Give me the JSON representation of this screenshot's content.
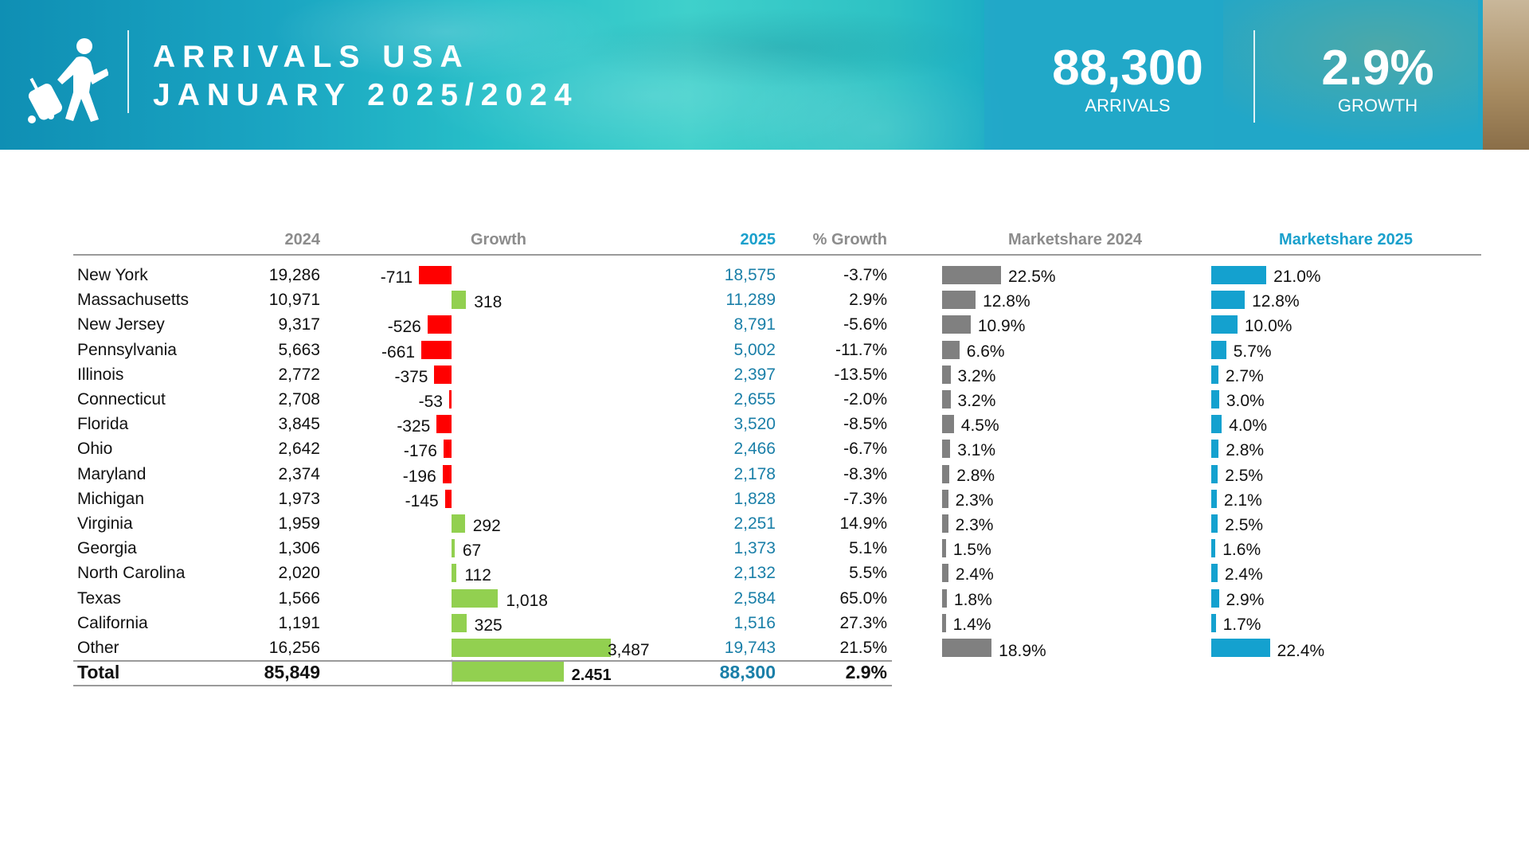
{
  "header": {
    "title_line1": "ARRIVALS USA",
    "title_line2": "JANUARY 2025/2024",
    "kpi_arrivals_value": "88,300",
    "kpi_arrivals_label": "ARRIVALS",
    "kpi_growth_value": "2.9%",
    "kpi_growth_label": "GROWTH",
    "icon": "traveler-with-suitcase-icon"
  },
  "colors": {
    "negative": "#ff0000",
    "positive": "#92d050",
    "share2024": "#808080",
    "share2025": "#14a1cf",
    "accent": "#1aa0cc"
  },
  "table": {
    "columns": {
      "y2024": "2024",
      "growth": "Growth",
      "y2025": "2025",
      "pct": "% Growth",
      "ms2024": "Marketshare 2024",
      "ms2025": "Marketshare 2025"
    },
    "rows": [
      {
        "state": "New York",
        "v2024": "19,286",
        "growth": -711,
        "growth_label": "-711",
        "v2025": "18,575",
        "pct": "-3.7%",
        "ms2024": 22.5,
        "ms2024_label": "22.5%",
        "ms2025": 21.0,
        "ms2025_label": "21.0%"
      },
      {
        "state": "Massachusetts",
        "v2024": "10,971",
        "growth": 318,
        "growth_label": "318",
        "v2025": "11,289",
        "pct": "2.9%",
        "ms2024": 12.8,
        "ms2024_label": "12.8%",
        "ms2025": 12.8,
        "ms2025_label": "12.8%"
      },
      {
        "state": "New Jersey",
        "v2024": "9,317",
        "growth": -526,
        "growth_label": "-526",
        "v2025": "8,791",
        "pct": "-5.6%",
        "ms2024": 10.9,
        "ms2024_label": "10.9%",
        "ms2025": 10.0,
        "ms2025_label": "10.0%"
      },
      {
        "state": "Pennsylvania",
        "v2024": "5,663",
        "growth": -661,
        "growth_label": "-661",
        "v2025": "5,002",
        "pct": "-11.7%",
        "ms2024": 6.6,
        "ms2024_label": "6.6%",
        "ms2025": 5.7,
        "ms2025_label": "5.7%"
      },
      {
        "state": "Illinois",
        "v2024": "2,772",
        "growth": -375,
        "growth_label": "-375",
        "v2025": "2,397",
        "pct": "-13.5%",
        "ms2024": 3.2,
        "ms2024_label": "3.2%",
        "ms2025": 2.7,
        "ms2025_label": "2.7%"
      },
      {
        "state": "Connecticut",
        "v2024": "2,708",
        "growth": -53,
        "growth_label": "-53",
        "v2025": "2,655",
        "pct": "-2.0%",
        "ms2024": 3.2,
        "ms2024_label": "3.2%",
        "ms2025": 3.0,
        "ms2025_label": "3.0%"
      },
      {
        "state": "Florida",
        "v2024": "3,845",
        "growth": -325,
        "growth_label": "-325",
        "v2025": "3,520",
        "pct": "-8.5%",
        "ms2024": 4.5,
        "ms2024_label": "4.5%",
        "ms2025": 4.0,
        "ms2025_label": "4.0%"
      },
      {
        "state": "Ohio",
        "v2024": "2,642",
        "growth": -176,
        "growth_label": "-176",
        "v2025": "2,466",
        "pct": "-6.7%",
        "ms2024": 3.1,
        "ms2024_label": "3.1%",
        "ms2025": 2.8,
        "ms2025_label": "2.8%"
      },
      {
        "state": "Maryland",
        "v2024": "2,374",
        "growth": -196,
        "growth_label": "-196",
        "v2025": "2,178",
        "pct": "-8.3%",
        "ms2024": 2.8,
        "ms2024_label": "2.8%",
        "ms2025": 2.5,
        "ms2025_label": "2.5%"
      },
      {
        "state": "Michigan",
        "v2024": "1,973",
        "growth": -145,
        "growth_label": "-145",
        "v2025": "1,828",
        "pct": "-7.3%",
        "ms2024": 2.3,
        "ms2024_label": "2.3%",
        "ms2025": 2.1,
        "ms2025_label": "2.1%"
      },
      {
        "state": "Virginia",
        "v2024": "1,959",
        "growth": 292,
        "growth_label": "292",
        "v2025": "2,251",
        "pct": "14.9%",
        "ms2024": 2.3,
        "ms2024_label": "2.3%",
        "ms2025": 2.5,
        "ms2025_label": "2.5%"
      },
      {
        "state": "Georgia",
        "v2024": "1,306",
        "growth": 67,
        "growth_label": "67",
        "v2025": "1,373",
        "pct": "5.1%",
        "ms2024": 1.5,
        "ms2024_label": "1.5%",
        "ms2025": 1.6,
        "ms2025_label": "1.6%"
      },
      {
        "state": "North Carolina",
        "v2024": "2,020",
        "growth": 112,
        "growth_label": "112",
        "v2025": "2,132",
        "pct": "5.5%",
        "ms2024": 2.4,
        "ms2024_label": "2.4%",
        "ms2025": 2.4,
        "ms2025_label": "2.4%"
      },
      {
        "state": "Texas",
        "v2024": "1,566",
        "growth": 1018,
        "growth_label": "1,018",
        "v2025": "2,584",
        "pct": "65.0%",
        "ms2024": 1.8,
        "ms2024_label": "1.8%",
        "ms2025": 2.9,
        "ms2025_label": "2.9%"
      },
      {
        "state": "California",
        "v2024": "1,191",
        "growth": 325,
        "growth_label": "325",
        "v2025": "1,516",
        "pct": "27.3%",
        "ms2024": 1.4,
        "ms2024_label": "1.4%",
        "ms2025": 1.7,
        "ms2025_label": "1.7%"
      },
      {
        "state": "Other",
        "v2024": "16,256",
        "growth": 3487,
        "growth_label": "3,487",
        "v2025": "19,743",
        "pct": "21.5%",
        "ms2024": 18.9,
        "ms2024_label": "18.9%",
        "ms2025": 22.4,
        "ms2025_label": "22.4%"
      }
    ],
    "total": {
      "label": "Total",
      "v2024": "85,849",
      "growth": 2451,
      "growth_label": "2.451",
      "v2025": "88,300",
      "pct": "2.9%"
    }
  }
}
